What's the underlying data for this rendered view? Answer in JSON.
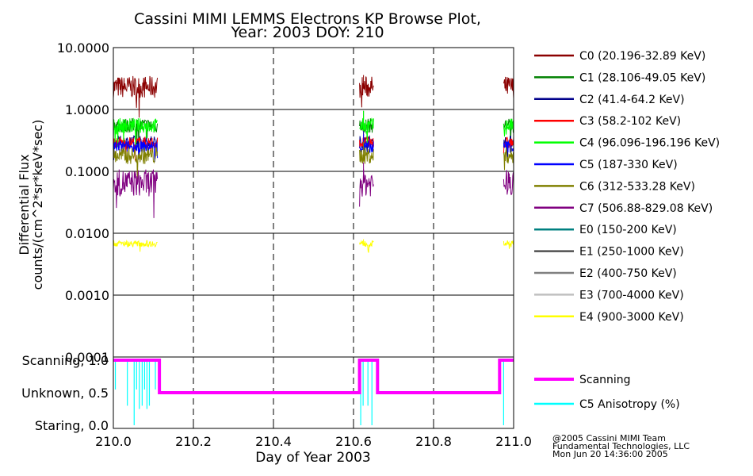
{
  "chart_data": [
    {
      "type": "line",
      "title": "Cassini MIMI LEMMS Electrons KP Browse Plot,",
      "subtitle": "Year: 2003 DOY: 210",
      "ylabel_line1": "Differential Flux",
      "ylabel_line2": "counts/(cm^2*sr*keV*sec)",
      "y_scale": "log",
      "ylim": [
        0.0001,
        10.0
      ],
      "y_ticks": [
        10.0,
        1.0,
        0.1,
        0.01,
        0.001,
        0.0001
      ],
      "y_tick_labels": [
        "10.0000",
        "1.0000",
        "0.1000",
        "0.0100",
        "0.0010",
        "0.0001"
      ],
      "xlim": [
        210.0,
        211.0
      ],
      "x_dashed_gridlines": [
        210.2,
        210.4,
        210.6,
        210.8
      ],
      "grid": true,
      "legend_position": "right",
      "data_segments": [
        [
          210.0,
          210.11
        ],
        [
          210.615,
          210.65
        ],
        [
          210.975,
          211.0
        ]
      ],
      "series": [
        {
          "name": "C0 (20.196-32.89 KeV)",
          "color": "#8b0000",
          "level": 2.3,
          "noise": 0.18,
          "spike": 3.6
        },
        {
          "name": "C1 (28.106-49.05 KeV)",
          "color": "#008000",
          "level": 0.55,
          "noise": 0.12,
          "spike": 0.95
        },
        {
          "name": "C2 (41.4-64.2 KeV)",
          "color": "#00008b",
          "level": 0.3,
          "noise": 0.1,
          "spike": 0.45
        },
        {
          "name": "C3 (58.2-102 KeV)",
          "color": "#ff0000",
          "level": 0.29,
          "noise": 0.1,
          "spike": 0.4
        },
        {
          "name": "C4 (96.096-196.196 KeV)",
          "color": "#00ff00",
          "level": 0.55,
          "noise": 0.12,
          "spike": 0.95
        },
        {
          "name": "C5 (187-330 KeV)",
          "color": "#0000ff",
          "level": 0.25,
          "noise": 0.1,
          "spike": 0.4
        },
        {
          "name": "C6 (312-533.28 KeV)",
          "color": "#808000",
          "level": 0.18,
          "noise": 0.14,
          "spike": 0.3
        },
        {
          "name": "C7 (506.88-829.08 KeV)",
          "color": "#800080",
          "level": 0.065,
          "noise": 0.22,
          "spike": 0.14
        },
        {
          "name": "E0 (150-200 KeV)",
          "color": "#008080",
          "level": null
        },
        {
          "name": "E1 (250-1000 KeV)",
          "color": "#505050",
          "level": null
        },
        {
          "name": "E2 (400-750 KeV)",
          "color": "#808080",
          "level": null
        },
        {
          "name": "E3 (700-4000 KeV)",
          "color": "#c0c0c0",
          "level": null
        },
        {
          "name": "E4 (900-3000 KeV)",
          "color": "#ffff00",
          "level": 0.0068,
          "noise": 0.05,
          "spike": 0.008
        }
      ]
    },
    {
      "type": "line",
      "xlabel": "Day of Year 2003",
      "x_ticks": [
        210.0,
        210.2,
        210.4,
        210.6,
        210.8,
        211.0
      ],
      "x_tick_labels": [
        "210.0",
        "210.2",
        "210.4",
        "210.6",
        "210.8",
        "211.0"
      ],
      "ylim": [
        0.0,
        1.0
      ],
      "y_ticks": [
        1.0,
        0.5,
        0.0
      ],
      "y_tick_labels": [
        "Scanning, 1.0",
        "Unknown, 0.5",
        "Staring, 0.0"
      ],
      "legend_position": "right",
      "series": [
        {
          "name": "Scanning",
          "color": "#ff00ff",
          "x": [
            210.0,
            210.115,
            210.115,
            210.615,
            210.615,
            210.66,
            210.66,
            210.965,
            210.965,
            211.0
          ],
          "y": [
            1.0,
            1.0,
            0.5,
            0.5,
            1.0,
            1.0,
            0.5,
            0.5,
            1.0,
            1.0
          ]
        },
        {
          "name": "C5 Anisotropy (%)",
          "color": "#00ffff",
          "spikes": [
            {
              "x": 210.005,
              "y": 0.55
            },
            {
              "x": 210.035,
              "y": 0.3
            },
            {
              "x": 210.052,
              "y": 0.0
            },
            {
              "x": 210.058,
              "y": 0.55
            },
            {
              "x": 210.065,
              "y": 0.25
            },
            {
              "x": 210.072,
              "y": 0.3
            },
            {
              "x": 210.078,
              "y": 0.55
            },
            {
              "x": 210.084,
              "y": 0.25
            },
            {
              "x": 210.09,
              "y": 0.3
            },
            {
              "x": 210.105,
              "y": 0.55
            },
            {
              "x": 210.618,
              "y": 0.0
            },
            {
              "x": 210.624,
              "y": 0.3
            },
            {
              "x": 210.636,
              "y": 0.3
            },
            {
              "x": 210.646,
              "y": 0.0
            },
            {
              "x": 210.975,
              "y": 0.0
            }
          ]
        }
      ]
    }
  ],
  "footer": {
    "line1": "@2005 Cassini MIMI Team",
    "line2": "Fundamental Technologies, LLC",
    "line3": "Mon Jun 20 14:36:00 2005"
  }
}
